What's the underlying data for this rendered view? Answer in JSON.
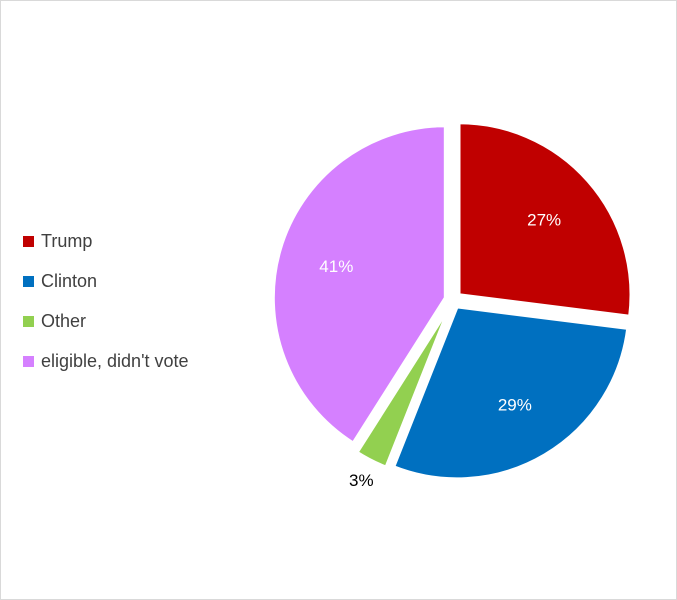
{
  "chart_data": {
    "type": "pie",
    "title": "",
    "legend_position": "left",
    "exploded": true,
    "start_angle_deg": 0,
    "direction": "clockwise",
    "slices": [
      {
        "name": "Trump",
        "value": 27,
        "label": "27%",
        "color": "#C00000",
        "label_color": "#ffffff"
      },
      {
        "name": "Clinton",
        "value": 29,
        "label": "29%",
        "color": "#0070C0",
        "label_color": "#ffffff"
      },
      {
        "name": "Other",
        "value": 3,
        "label": "3%",
        "color": "#92D050",
        "label_color": "#000000"
      },
      {
        "name": "eligible, didn't vote",
        "value": 41,
        "label": "41%",
        "color": "#D580FF",
        "label_color": "#ffffff"
      }
    ]
  }
}
